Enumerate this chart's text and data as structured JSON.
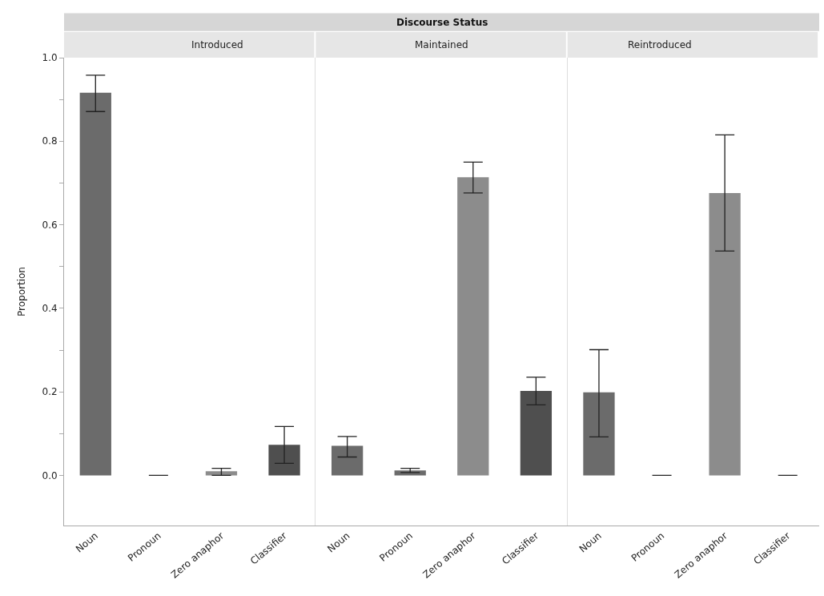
{
  "chart_data": [
    {
      "type": "bar",
      "title": "Introduced",
      "annotations": [
        "Discourse Status"
      ],
      "ylabel": "Proportion",
      "categories": [
        "Noun",
        "Pronoun",
        "Zero anaphor",
        "Classifier"
      ],
      "values": [
        0.916,
        0,
        0.01,
        0.073
      ],
      "colors": [
        "#6b6b6b",
        "#6b6b6b",
        "#8c8c8c",
        "#4f4f4f"
      ],
      "errors": [
        [
          0.871,
          0.958
        ],
        null,
        [
          0,
          0.017
        ],
        [
          0.029,
          0.117
        ]
      ],
      "ylim": [
        -0.12,
        1.0
      ],
      "yticks": [
        {
          "value": 0,
          "label": "0.0"
        },
        {
          "value": 0.1,
          "label": null
        },
        {
          "value": 0.2,
          "label": "0.2"
        },
        {
          "value": 0.3,
          "label": null
        },
        {
          "value": 0.4,
          "label": "0.4"
        },
        {
          "value": 0.5,
          "label": null
        },
        {
          "value": 0.6,
          "label": "0.6"
        },
        {
          "value": 0.7,
          "label": null
        },
        {
          "value": 0.8,
          "label": "0.8"
        },
        {
          "value": 0.9,
          "label": null
        },
        {
          "value": 1.0,
          "label": "1.0"
        }
      ]
    },
    {
      "type": "bar",
      "title": "Maintained",
      "categories": [
        "Noun",
        "Pronoun",
        "Zero anaphor",
        "Classifier"
      ],
      "values": [
        0.071,
        0.012,
        0.714,
        0.202
      ],
      "colors": [
        "#6b6b6b",
        "#6b6b6b",
        "#8c8c8c",
        "#4f4f4f"
      ],
      "errors": [
        [
          0.044,
          0.093
        ],
        [
          0.007,
          0.017
        ],
        [
          0.676,
          0.75
        ],
        [
          0.169,
          0.235
        ]
      ],
      "ylim": [
        -0.12,
        1.0
      ],
      "tick_labels": "x"
    },
    {
      "type": "bar",
      "title": "Reintroduced",
      "categories": [
        "Noun",
        "Pronoun",
        "Zero anaphor",
        "Classifier"
      ],
      "values": [
        0.199,
        0,
        0.676,
        0
      ],
      "colors": [
        "#6b6b6b",
        "#6b6b6b",
        "#8c8c8c",
        "#4f4f4f"
      ],
      "errors": [
        [
          0.092,
          0.301
        ],
        null,
        [
          0.537,
          0.815
        ],
        null
      ],
      "ylim": [
        -0.12,
        1.0
      ],
      "tick_labels": "x"
    }
  ]
}
